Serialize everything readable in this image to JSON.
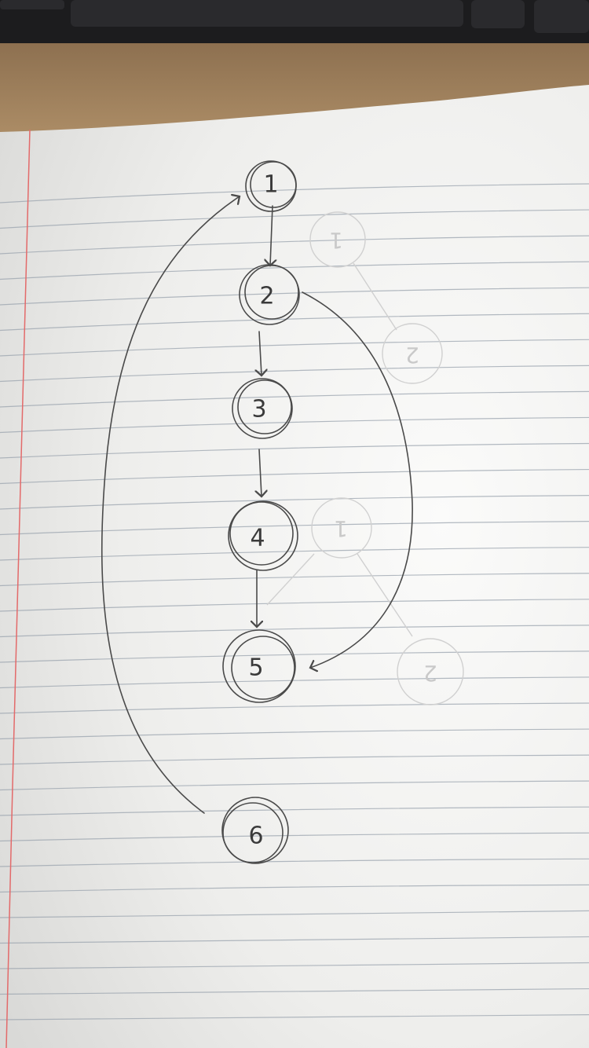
{
  "diagram": {
    "nodes": [
      {
        "id": "n1",
        "label": "1"
      },
      {
        "id": "n2",
        "label": "2"
      },
      {
        "id": "n3",
        "label": "3"
      },
      {
        "id": "n4",
        "label": "4"
      },
      {
        "id": "n5",
        "label": "5"
      },
      {
        "id": "n6",
        "label": "6"
      }
    ],
    "edges": [
      {
        "from": "1",
        "to": "2"
      },
      {
        "from": "2",
        "to": "3"
      },
      {
        "from": "3",
        "to": "4"
      },
      {
        "from": "4",
        "to": "5"
      },
      {
        "from": "2",
        "to": "5"
      },
      {
        "from": "6",
        "to": "1"
      }
    ],
    "ghost_nodes": [
      {
        "label": "1"
      },
      {
        "label": "2"
      },
      {
        "label": "1"
      },
      {
        "label": "2"
      }
    ]
  },
  "colors": {
    "paper": "#f4f4f2",
    "rule_line": "#9aa3ad",
    "margin_line": "#e36a6a",
    "pencil": "#4a4a4a",
    "desk": "#a8875f",
    "keyboard": "#1c1c1e"
  }
}
